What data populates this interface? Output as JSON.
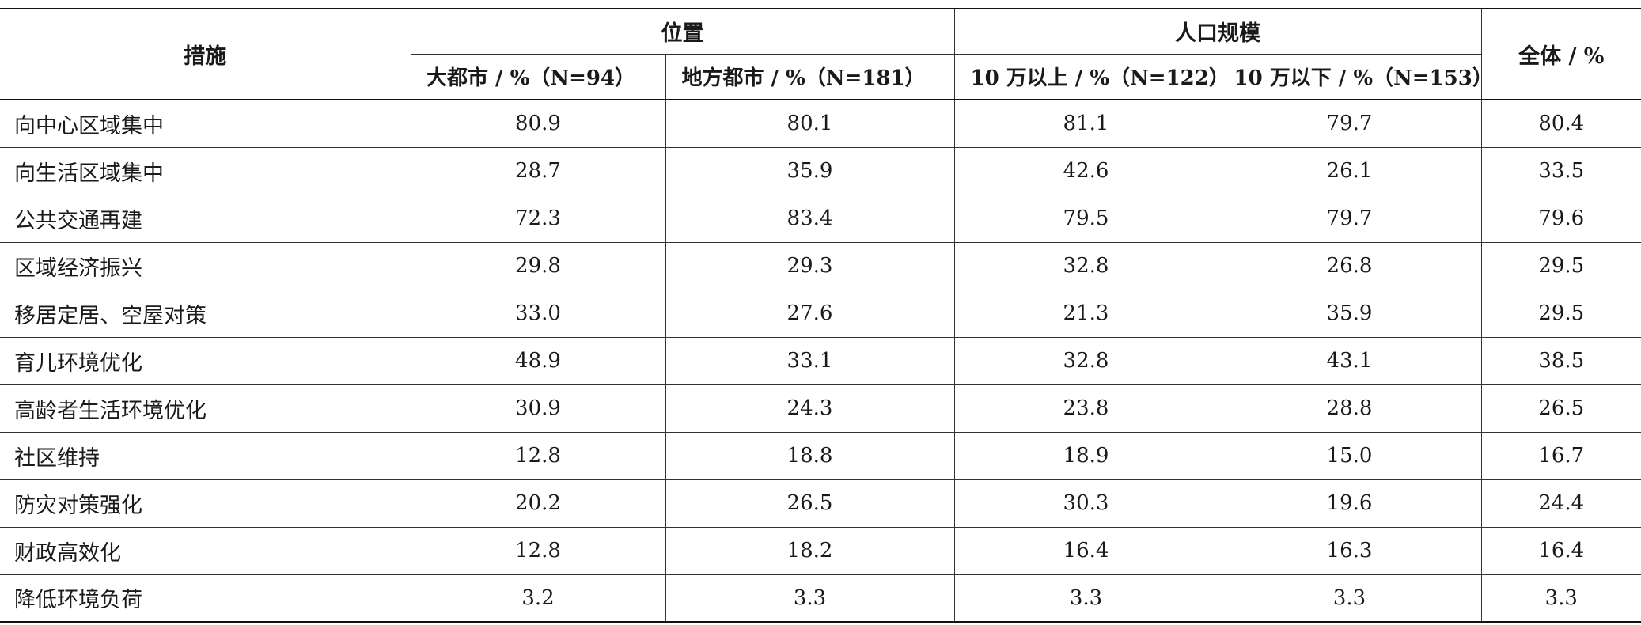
{
  "table": {
    "header": {
      "measure": "措施",
      "location": "位置",
      "population": "人口规模",
      "overall": "全体 / %",
      "metro": "大都市 / %（N=94）",
      "regional": "地方都市 / %（N=181）",
      "over100k": "10 万以上 / %（N=122）",
      "under100k": "10 万以下 / %（N=153）"
    },
    "rows": [
      {
        "label": "向中心区域集中",
        "metro": "80.9",
        "regional": "80.1",
        "over100k": "81.1",
        "under100k": "79.7",
        "overall": "80.4"
      },
      {
        "label": "向生活区域集中",
        "metro": "28.7",
        "regional": "35.9",
        "over100k": "42.6",
        "under100k": "26.1",
        "overall": "33.5"
      },
      {
        "label": "公共交通再建",
        "metro": "72.3",
        "regional": "83.4",
        "over100k": "79.5",
        "under100k": "79.7",
        "overall": "79.6"
      },
      {
        "label": "区域经济振兴",
        "metro": "29.8",
        "regional": "29.3",
        "over100k": "32.8",
        "under100k": "26.8",
        "overall": "29.5"
      },
      {
        "label": "移居定居、空屋对策",
        "metro": "33.0",
        "regional": "27.6",
        "over100k": "21.3",
        "under100k": "35.9",
        "overall": "29.5"
      },
      {
        "label": "育儿环境优化",
        "metro": "48.9",
        "regional": "33.1",
        "over100k": "32.8",
        "under100k": "43.1",
        "overall": "38.5"
      },
      {
        "label": "高龄者生活环境优化",
        "metro": "30.9",
        "regional": "24.3",
        "over100k": "23.8",
        "under100k": "28.8",
        "overall": "26.5"
      },
      {
        "label": "社区维持",
        "metro": "12.8",
        "regional": "18.8",
        "over100k": "18.9",
        "under100k": "15.0",
        "overall": "16.7"
      },
      {
        "label": "防灾对策强化",
        "metro": "20.2",
        "regional": "26.5",
        "over100k": "30.3",
        "under100k": "19.6",
        "overall": "24.4"
      },
      {
        "label": "财政高效化",
        "metro": "12.8",
        "regional": "18.2",
        "over100k": "16.4",
        "under100k": "16.3",
        "overall": "16.4"
      },
      {
        "label": "降低环境负荷",
        "metro": "3.2",
        "regional": "3.3",
        "over100k": "3.3",
        "under100k": "3.3",
        "overall": "3.3"
      }
    ]
  }
}
